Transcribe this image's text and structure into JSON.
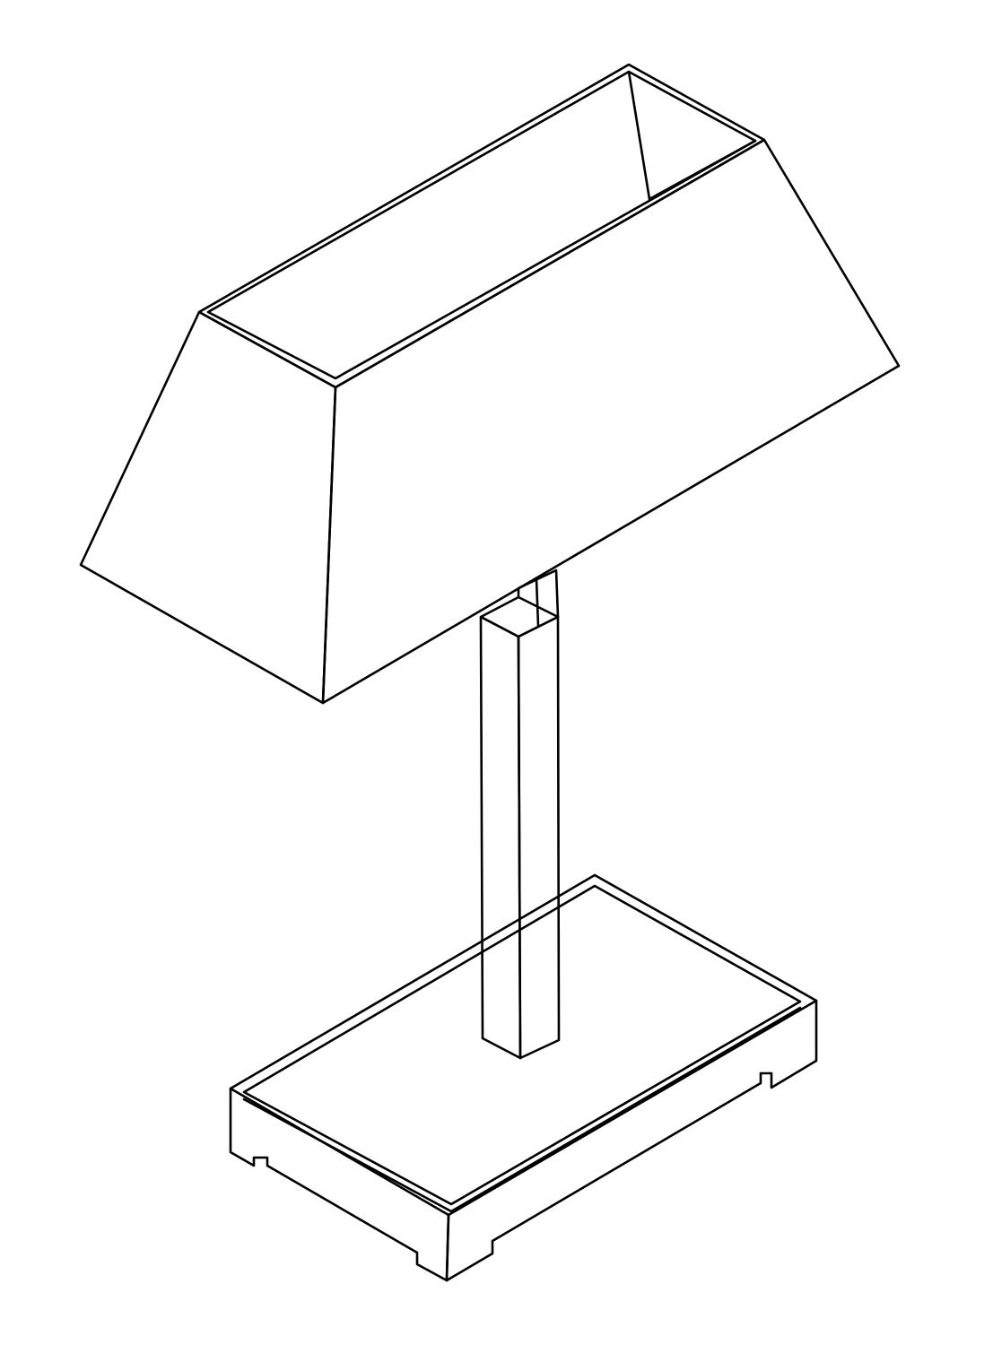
{
  "figure": {
    "subject": "desk lamp",
    "style": "isometric line drawing",
    "line_color": "#000000",
    "background_color": "#ffffff",
    "parts": [
      "lamp-shade",
      "lamp-post",
      "lamp-base"
    ]
  }
}
